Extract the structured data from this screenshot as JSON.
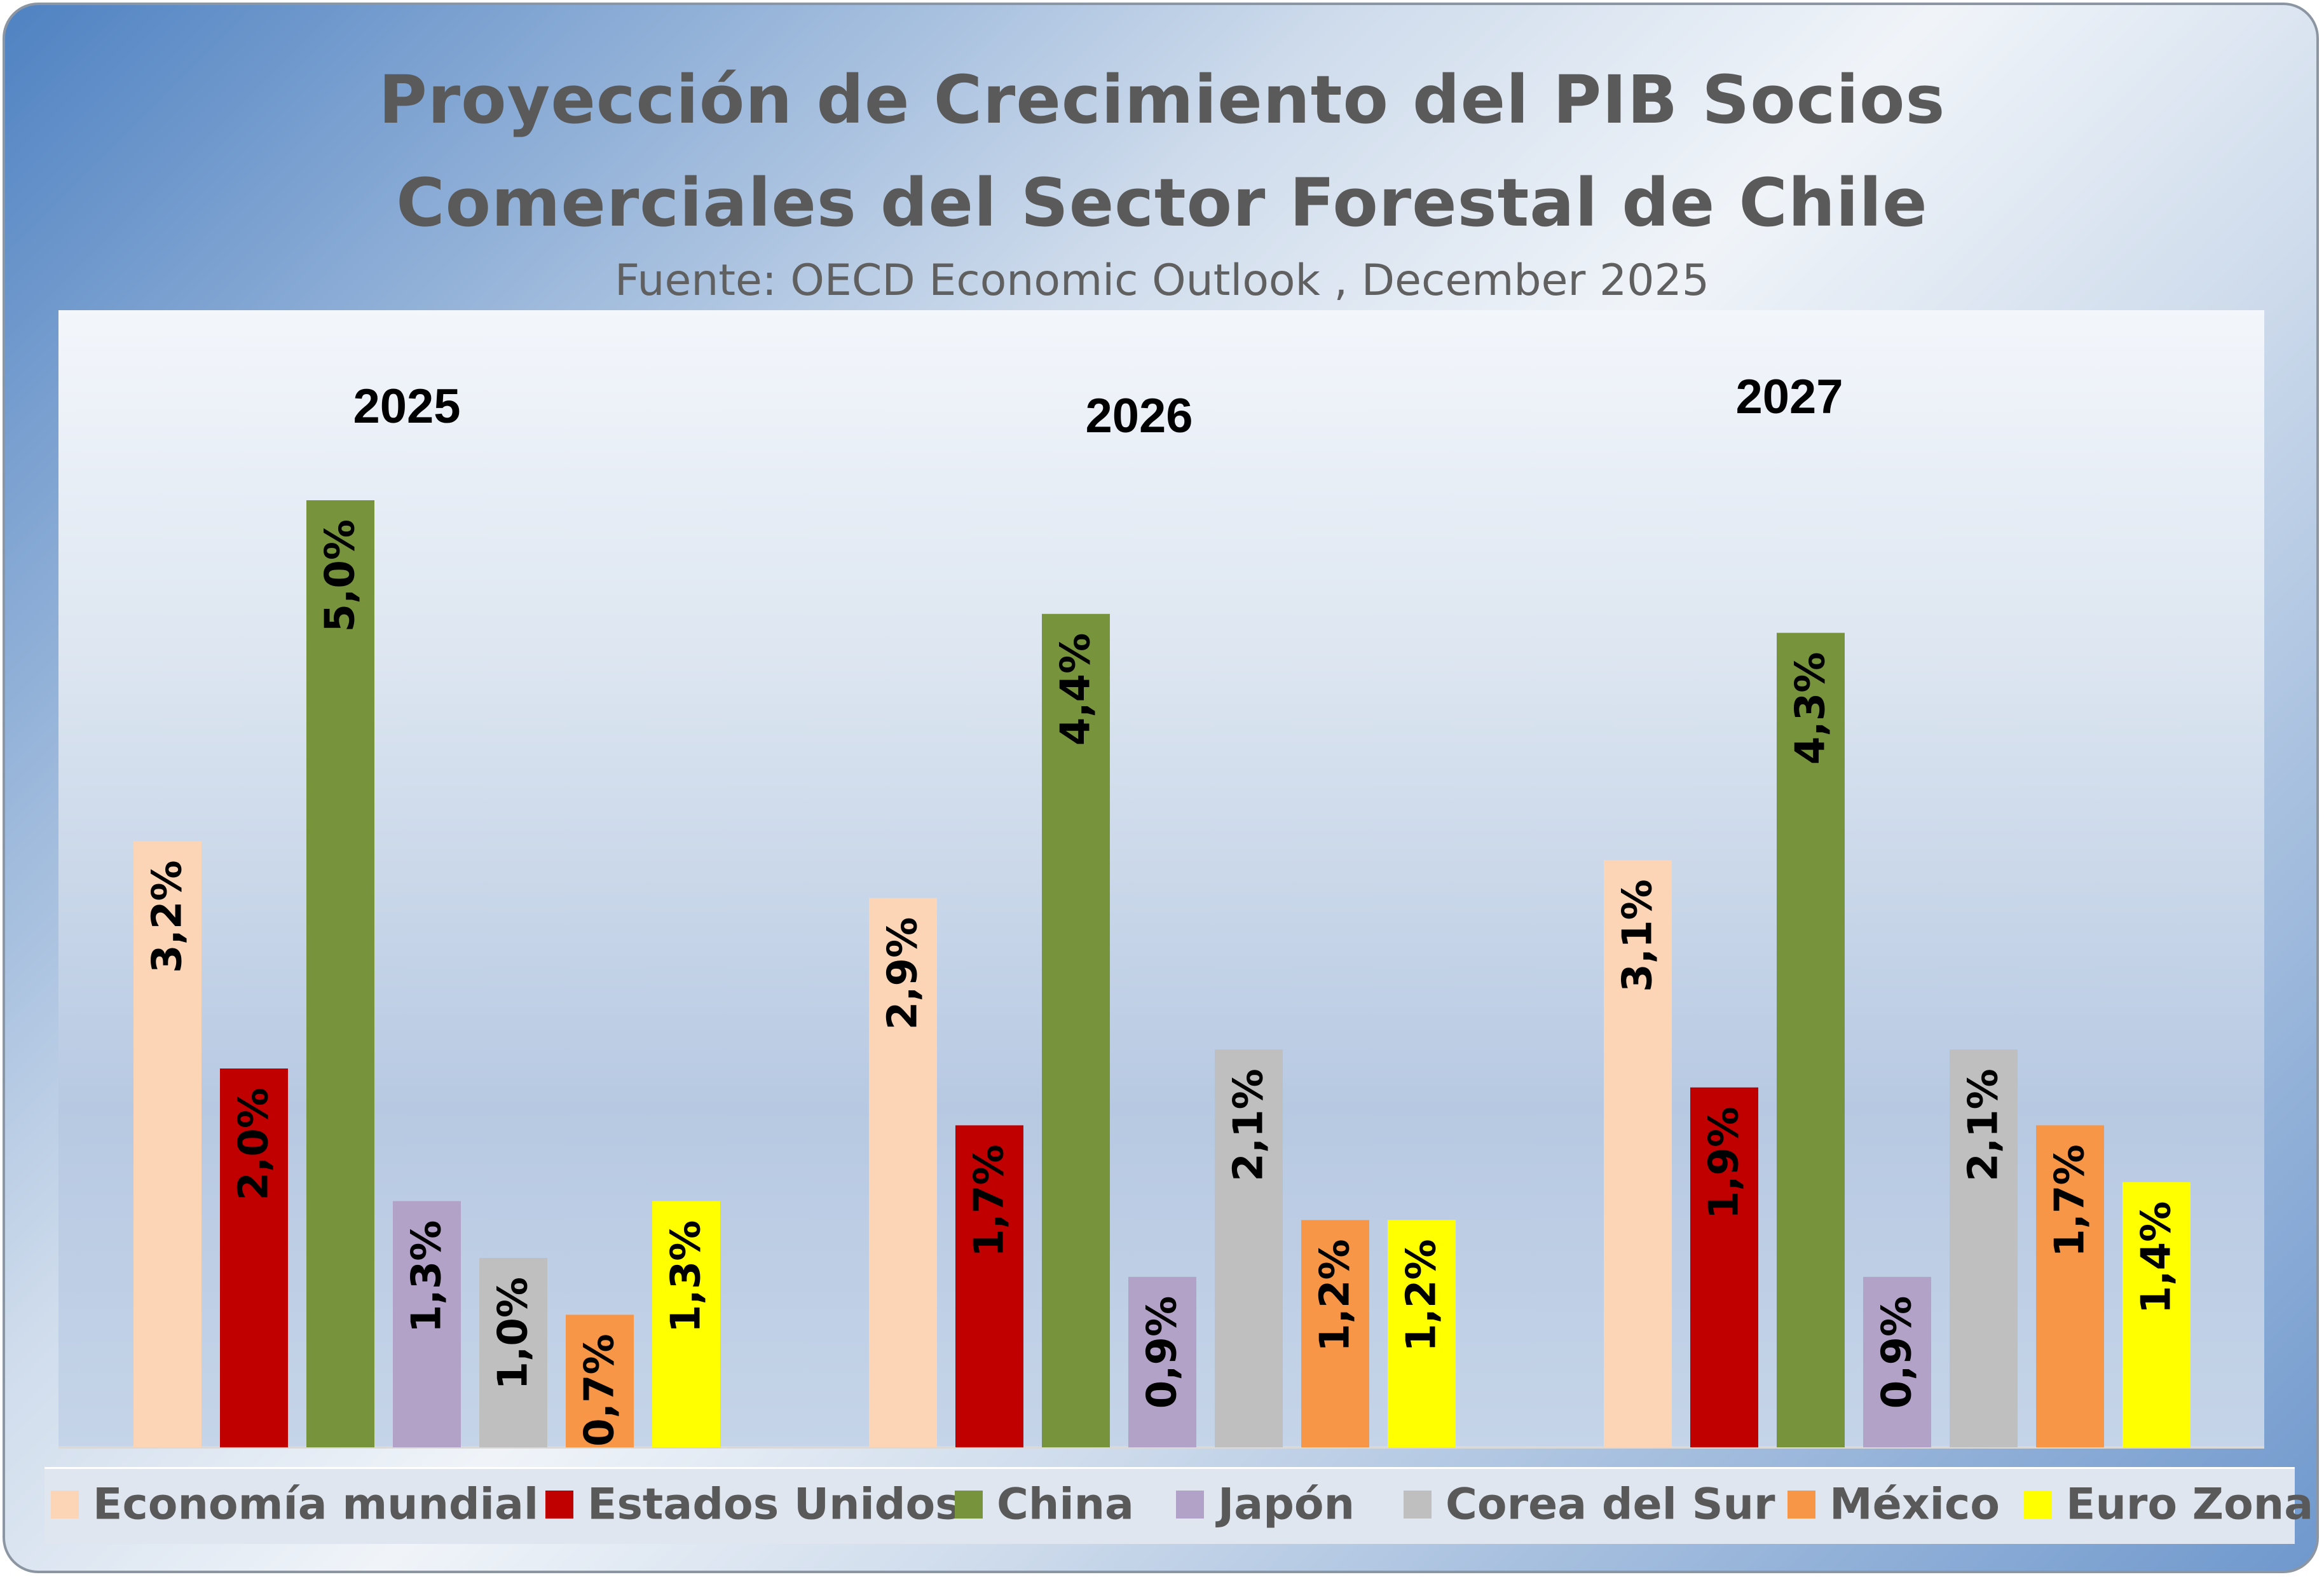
{
  "chart_data": {
    "type": "bar",
    "title": "Proyección de Crecimiento del PIB Socios Comerciales del Sector Forestal de Chile",
    "title_line1": "Proyección de Crecimiento del PIB Socios",
    "title_line2": "Comerciales del Sector Forestal de Chile",
    "subtitle": "Fuente: OECD  Economic Outlook , December 2025",
    "categories": [
      "2025",
      "2026",
      "2027"
    ],
    "ylim": [
      0,
      5.5
    ],
    "legend_position": "bottom",
    "series": [
      {
        "name": "Economía mundial",
        "color": "#fbd5b5",
        "values": [
          3.2,
          2.9,
          3.1
        ],
        "labels": [
          "3,2%",
          "2,9%",
          "3,1%"
        ]
      },
      {
        "name": "Estados Unidos",
        "color": "#c00000",
        "values": [
          2.0,
          1.7,
          1.9
        ],
        "labels": [
          "2,0%",
          "1,7%",
          "1,9%"
        ]
      },
      {
        "name": "China",
        "color": "#77933c",
        "values": [
          5.0,
          4.4,
          4.3
        ],
        "labels": [
          "5,0%",
          "4,4%",
          "4,3%"
        ]
      },
      {
        "name": "Japón",
        "color": "#b3a2c7",
        "values": [
          1.3,
          0.9,
          0.9
        ],
        "labels": [
          "1,3%",
          "0,9%",
          "0,9%"
        ]
      },
      {
        "name": "Corea del Sur",
        "color": "#bfbfbf",
        "values": [
          1.0,
          2.1,
          2.1
        ],
        "labels": [
          "1,0%",
          "2,1%",
          "2,1%"
        ]
      },
      {
        "name": "México",
        "color": "#f79646",
        "values": [
          0.7,
          1.2,
          1.7
        ],
        "labels": [
          "0,7%",
          "1,2%",
          "1,7%"
        ]
      },
      {
        "name": "Euro Zona",
        "color": "#ffff00",
        "values": [
          1.3,
          1.2,
          1.4
        ],
        "labels": [
          "1,3%",
          "1,2%",
          "1,4%"
        ]
      }
    ]
  }
}
